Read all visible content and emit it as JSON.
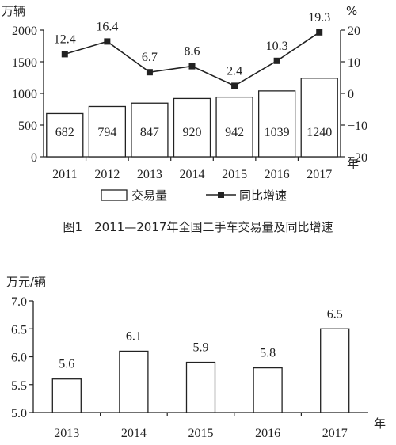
{
  "chart_data": [
    {
      "type": "bar",
      "title": "图1　2011—2017年全国二手车交易量及同比增速",
      "categories": [
        "2011",
        "2012",
        "2013",
        "2014",
        "2015",
        "2016",
        "2017"
      ],
      "x_unit": "年",
      "y_left_unit": "万辆",
      "y_right_unit": "%",
      "ylim_left": [
        0,
        2000
      ],
      "ylim_right": [
        -20,
        20
      ],
      "y_left_ticks": [
        "0",
        "500",
        "1000",
        "1500",
        "2000"
      ],
      "y_right_ticks": [
        "−20",
        "−10",
        "0",
        "10",
        "20"
      ],
      "series": [
        {
          "name": "交易量",
          "type": "bar",
          "axis": "left",
          "values": [
            682,
            794,
            847,
            920,
            942,
            1039,
            1240
          ],
          "labels": [
            "682",
            "794",
            "847",
            "920",
            "942",
            "1039",
            "1240"
          ]
        },
        {
          "name": "同比增速",
          "type": "line",
          "axis": "right",
          "values": [
            12.4,
            16.4,
            6.7,
            8.6,
            2.4,
            10.3,
            19.3
          ],
          "labels": [
            "12.4",
            "16.4",
            "6.7",
            "8.6",
            "2.4",
            "10.3",
            "19.3"
          ]
        }
      ],
      "legend": "bottom"
    },
    {
      "type": "bar",
      "categories": [
        "2013",
        "2014",
        "2015",
        "2016",
        "2017"
      ],
      "x_unit": "年",
      "y_unit": "万元/辆",
      "ylim": [
        5.0,
        7.0
      ],
      "y_ticks": [
        "5.0",
        "5.5",
        "6.0",
        "6.5",
        "7.0"
      ],
      "values": [
        5.6,
        6.1,
        5.9,
        5.8,
        6.5
      ],
      "labels": [
        "5.6",
        "6.1",
        "5.9",
        "5.8",
        "6.5"
      ]
    }
  ],
  "colors": {
    "ink": "#222222",
    "background": "#ffffff"
  }
}
